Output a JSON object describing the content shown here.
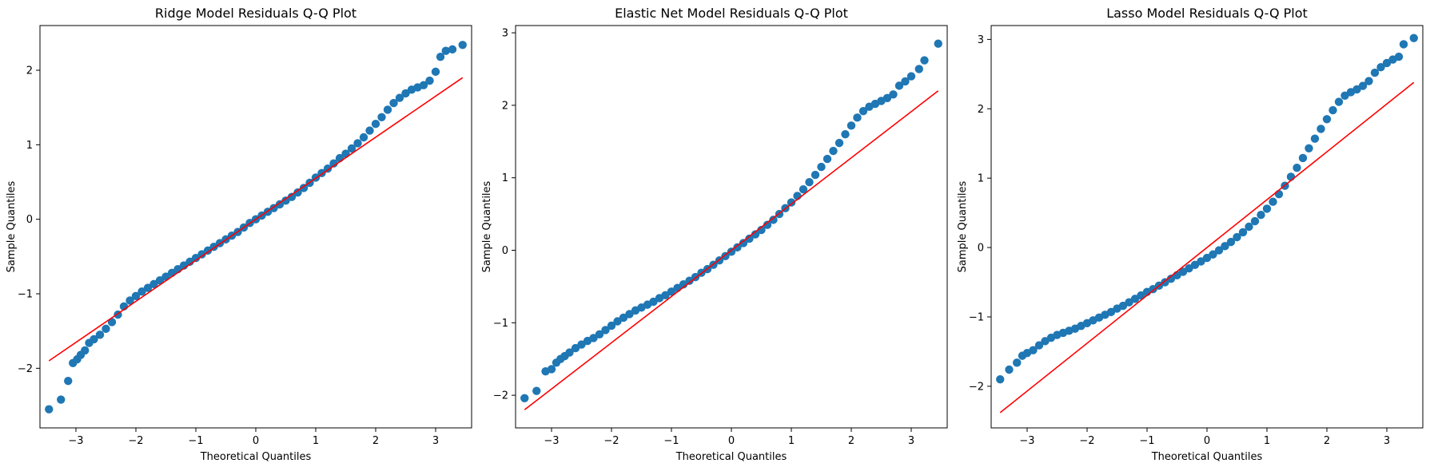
{
  "chart_data": [
    {
      "type": "scatter",
      "title": "Ridge Model Residuals Q-Q Plot",
      "xlabel": "Theoretical Quantiles",
      "ylabel": "Sample Quantiles",
      "xlim": [
        -3.6,
        3.6
      ],
      "ylim": [
        -2.8,
        2.6
      ],
      "xticks": [
        -3,
        -2,
        -1,
        0,
        1,
        2,
        3
      ],
      "xtick_labels": [
        "−3",
        "−2",
        "−1",
        "0",
        "1",
        "2",
        "3"
      ],
      "yticks": [
        -2,
        -1,
        0,
        1,
        2
      ],
      "ytick_labels": [
        "−2",
        "−1",
        "0",
        "1",
        "2"
      ],
      "grid": false,
      "point_color": "#1f77b4",
      "line_color": "#ff0000",
      "reference_line": [
        [
          -3.45,
          -1.9
        ],
        [
          3.45,
          1.9
        ]
      ],
      "points": [
        [
          -3.45,
          -2.55
        ],
        [
          -3.25,
          -2.42
        ],
        [
          -3.13,
          -2.17
        ],
        [
          -3.05,
          -1.93
        ],
        [
          -2.98,
          -1.88
        ],
        [
          -2.92,
          -1.82
        ],
        [
          -2.85,
          -1.76
        ],
        [
          -2.78,
          -1.66
        ],
        [
          -2.7,
          -1.61
        ],
        [
          -2.6,
          -1.55
        ],
        [
          -2.5,
          -1.47
        ],
        [
          -2.4,
          -1.38
        ],
        [
          -2.3,
          -1.28
        ],
        [
          -2.2,
          -1.17
        ],
        [
          -2.1,
          -1.09
        ],
        [
          -2.0,
          -1.03
        ],
        [
          -1.9,
          -0.97
        ],
        [
          -1.8,
          -0.92
        ],
        [
          -1.7,
          -0.87
        ],
        [
          -1.6,
          -0.82
        ],
        [
          -1.5,
          -0.77
        ],
        [
          -1.4,
          -0.72
        ],
        [
          -1.3,
          -0.67
        ],
        [
          -1.2,
          -0.62
        ],
        [
          -1.1,
          -0.57
        ],
        [
          -1.0,
          -0.52
        ],
        [
          -0.9,
          -0.47
        ],
        [
          -0.8,
          -0.42
        ],
        [
          -0.7,
          -0.37
        ],
        [
          -0.6,
          -0.32
        ],
        [
          -0.5,
          -0.27
        ],
        [
          -0.4,
          -0.22
        ],
        [
          -0.3,
          -0.17
        ],
        [
          -0.2,
          -0.11
        ],
        [
          -0.1,
          -0.05
        ],
        [
          0.0,
          0.0
        ],
        [
          0.1,
          0.05
        ],
        [
          0.2,
          0.1
        ],
        [
          0.3,
          0.15
        ],
        [
          0.4,
          0.2
        ],
        [
          0.5,
          0.25
        ],
        [
          0.6,
          0.3
        ],
        [
          0.7,
          0.36
        ],
        [
          0.8,
          0.42
        ],
        [
          0.9,
          0.49
        ],
        [
          1.0,
          0.56
        ],
        [
          1.1,
          0.62
        ],
        [
          1.2,
          0.68
        ],
        [
          1.3,
          0.75
        ],
        [
          1.4,
          0.82
        ],
        [
          1.5,
          0.88
        ],
        [
          1.6,
          0.95
        ],
        [
          1.7,
          1.02
        ],
        [
          1.8,
          1.1
        ],
        [
          1.9,
          1.19
        ],
        [
          2.0,
          1.28
        ],
        [
          2.1,
          1.37
        ],
        [
          2.2,
          1.47
        ],
        [
          2.3,
          1.56
        ],
        [
          2.4,
          1.63
        ],
        [
          2.5,
          1.69
        ],
        [
          2.6,
          1.74
        ],
        [
          2.7,
          1.77
        ],
        [
          2.8,
          1.8
        ],
        [
          2.9,
          1.86
        ],
        [
          3.0,
          1.98
        ],
        [
          3.08,
          2.18
        ],
        [
          3.17,
          2.26
        ],
        [
          3.28,
          2.28
        ],
        [
          3.45,
          2.34
        ]
      ]
    },
    {
      "type": "scatter",
      "title": "Elastic Net Model Residuals Q-Q Plot",
      "xlabel": "Theoretical Quantiles",
      "ylabel": "Sample Quantiles",
      "xlim": [
        -3.6,
        3.6
      ],
      "ylim": [
        -2.45,
        3.1
      ],
      "xticks": [
        -3,
        -2,
        -1,
        0,
        1,
        2,
        3
      ],
      "xtick_labels": [
        "−3",
        "−2",
        "−1",
        "0",
        "1",
        "2",
        "3"
      ],
      "yticks": [
        -2,
        -1,
        0,
        1,
        2,
        3
      ],
      "ytick_labels": [
        "−2",
        "−1",
        "0",
        "1",
        "2",
        "3"
      ],
      "grid": false,
      "point_color": "#1f77b4",
      "line_color": "#ff0000",
      "reference_line": [
        [
          -3.45,
          -2.2
        ],
        [
          3.45,
          2.2
        ]
      ],
      "points": [
        [
          -3.45,
          -2.04
        ],
        [
          -3.25,
          -1.94
        ],
        [
          -3.1,
          -1.67
        ],
        [
          -3.0,
          -1.64
        ],
        [
          -2.92,
          -1.55
        ],
        [
          -2.85,
          -1.5
        ],
        [
          -2.78,
          -1.46
        ],
        [
          -2.7,
          -1.41
        ],
        [
          -2.6,
          -1.35
        ],
        [
          -2.5,
          -1.3
        ],
        [
          -2.4,
          -1.25
        ],
        [
          -2.3,
          -1.21
        ],
        [
          -2.2,
          -1.16
        ],
        [
          -2.1,
          -1.1
        ],
        [
          -2.0,
          -1.04
        ],
        [
          -1.9,
          -0.98
        ],
        [
          -1.8,
          -0.93
        ],
        [
          -1.7,
          -0.88
        ],
        [
          -1.6,
          -0.83
        ],
        [
          -1.5,
          -0.79
        ],
        [
          -1.4,
          -0.75
        ],
        [
          -1.3,
          -0.71
        ],
        [
          -1.2,
          -0.66
        ],
        [
          -1.1,
          -0.62
        ],
        [
          -1.0,
          -0.57
        ],
        [
          -0.9,
          -0.52
        ],
        [
          -0.8,
          -0.47
        ],
        [
          -0.7,
          -0.42
        ],
        [
          -0.6,
          -0.37
        ],
        [
          -0.5,
          -0.31
        ],
        [
          -0.4,
          -0.26
        ],
        [
          -0.3,
          -0.2
        ],
        [
          -0.2,
          -0.14
        ],
        [
          -0.1,
          -0.08
        ],
        [
          0.0,
          -0.02
        ],
        [
          0.1,
          0.04
        ],
        [
          0.2,
          0.1
        ],
        [
          0.3,
          0.16
        ],
        [
          0.4,
          0.22
        ],
        [
          0.5,
          0.28
        ],
        [
          0.6,
          0.35
        ],
        [
          0.7,
          0.42
        ],
        [
          0.8,
          0.5
        ],
        [
          0.9,
          0.58
        ],
        [
          1.0,
          0.66
        ],
        [
          1.1,
          0.75
        ],
        [
          1.2,
          0.84
        ],
        [
          1.3,
          0.94
        ],
        [
          1.4,
          1.04
        ],
        [
          1.5,
          1.15
        ],
        [
          1.6,
          1.26
        ],
        [
          1.7,
          1.37
        ],
        [
          1.8,
          1.48
        ],
        [
          1.9,
          1.6
        ],
        [
          2.0,
          1.72
        ],
        [
          2.1,
          1.83
        ],
        [
          2.2,
          1.92
        ],
        [
          2.3,
          1.98
        ],
        [
          2.4,
          2.02
        ],
        [
          2.5,
          2.06
        ],
        [
          2.6,
          2.1
        ],
        [
          2.7,
          2.15
        ],
        [
          2.8,
          2.27
        ],
        [
          2.9,
          2.33
        ],
        [
          3.0,
          2.4
        ],
        [
          3.13,
          2.5
        ],
        [
          3.22,
          2.62
        ],
        [
          3.45,
          2.85
        ]
      ]
    },
    {
      "type": "scatter",
      "title": "Lasso Model Residuals Q-Q Plot",
      "xlabel": "Theoretical Quantiles",
      "ylabel": "Sample Quantiles",
      "xlim": [
        -3.6,
        3.6
      ],
      "ylim": [
        -2.6,
        3.2
      ],
      "xticks": [
        -3,
        -2,
        -1,
        0,
        1,
        2,
        3
      ],
      "xtick_labels": [
        "−3",
        "−2",
        "−1",
        "0",
        "1",
        "2",
        "3"
      ],
      "yticks": [
        -2,
        -1,
        0,
        1,
        2,
        3
      ],
      "ytick_labels": [
        "−2",
        "−1",
        "0",
        "1",
        "2",
        "3"
      ],
      "grid": false,
      "point_color": "#1f77b4",
      "line_color": "#ff0000",
      "reference_line": [
        [
          -3.45,
          -2.38
        ],
        [
          3.45,
          2.38
        ]
      ],
      "points": [
        [
          -3.45,
          -1.9
        ],
        [
          -3.3,
          -1.76
        ],
        [
          -3.17,
          -1.66
        ],
        [
          -3.08,
          -1.56
        ],
        [
          -3.0,
          -1.52
        ],
        [
          -2.9,
          -1.48
        ],
        [
          -2.8,
          -1.41
        ],
        [
          -2.7,
          -1.35
        ],
        [
          -2.6,
          -1.3
        ],
        [
          -2.5,
          -1.26
        ],
        [
          -2.4,
          -1.23
        ],
        [
          -2.3,
          -1.2
        ],
        [
          -2.2,
          -1.17
        ],
        [
          -2.1,
          -1.13
        ],
        [
          -2.0,
          -1.09
        ],
        [
          -1.9,
          -1.05
        ],
        [
          -1.8,
          -1.01
        ],
        [
          -1.7,
          -0.97
        ],
        [
          -1.6,
          -0.93
        ],
        [
          -1.5,
          -0.88
        ],
        [
          -1.4,
          -0.84
        ],
        [
          -1.3,
          -0.79
        ],
        [
          -1.2,
          -0.74
        ],
        [
          -1.1,
          -0.69
        ],
        [
          -1.0,
          -0.64
        ],
        [
          -0.9,
          -0.6
        ],
        [
          -0.8,
          -0.55
        ],
        [
          -0.7,
          -0.5
        ],
        [
          -0.6,
          -0.45
        ],
        [
          -0.5,
          -0.4
        ],
        [
          -0.4,
          -0.35
        ],
        [
          -0.3,
          -0.3
        ],
        [
          -0.2,
          -0.25
        ],
        [
          -0.1,
          -0.2
        ],
        [
          0.0,
          -0.15
        ],
        [
          0.1,
          -0.1
        ],
        [
          0.2,
          -0.04
        ],
        [
          0.3,
          0.02
        ],
        [
          0.4,
          0.08
        ],
        [
          0.5,
          0.15
        ],
        [
          0.6,
          0.22
        ],
        [
          0.7,
          0.3
        ],
        [
          0.8,
          0.38
        ],
        [
          0.9,
          0.47
        ],
        [
          1.0,
          0.56
        ],
        [
          1.1,
          0.66
        ],
        [
          1.2,
          0.77
        ],
        [
          1.3,
          0.89
        ],
        [
          1.4,
          1.02
        ],
        [
          1.5,
          1.15
        ],
        [
          1.6,
          1.29
        ],
        [
          1.7,
          1.43
        ],
        [
          1.8,
          1.57
        ],
        [
          1.9,
          1.71
        ],
        [
          2.0,
          1.85
        ],
        [
          2.1,
          1.98
        ],
        [
          2.2,
          2.1
        ],
        [
          2.3,
          2.19
        ],
        [
          2.4,
          2.24
        ],
        [
          2.5,
          2.28
        ],
        [
          2.6,
          2.33
        ],
        [
          2.7,
          2.4
        ],
        [
          2.8,
          2.52
        ],
        [
          2.9,
          2.6
        ],
        [
          3.0,
          2.66
        ],
        [
          3.1,
          2.71
        ],
        [
          3.2,
          2.75
        ],
        [
          3.28,
          2.93
        ],
        [
          3.45,
          3.02
        ]
      ]
    }
  ]
}
